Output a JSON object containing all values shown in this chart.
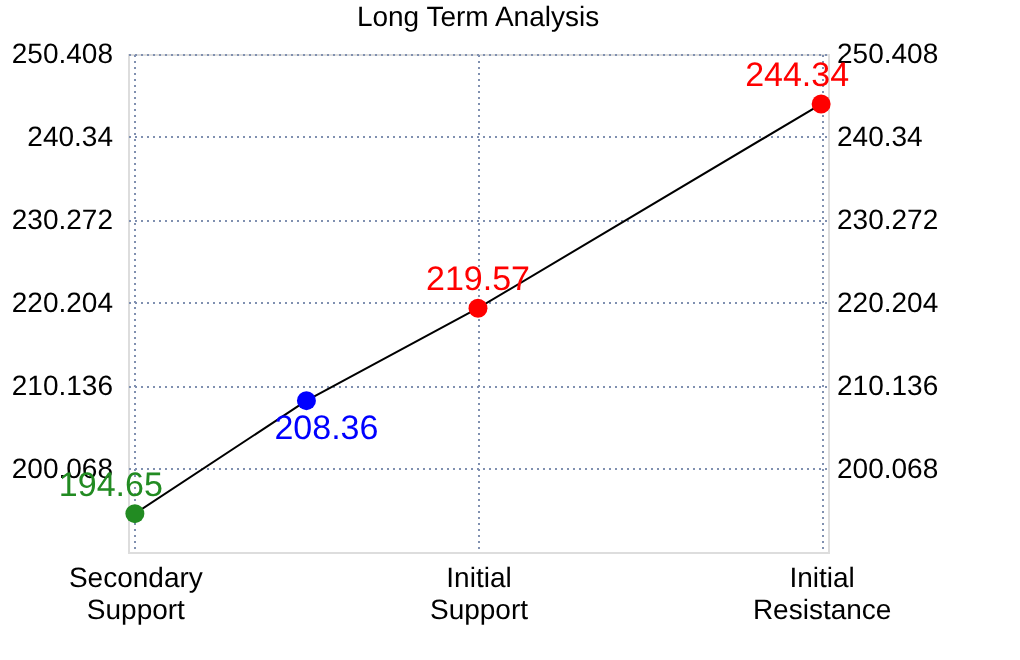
{
  "chart_data": {
    "type": "line",
    "title": "Long Term Analysis",
    "categories": [
      "Secondary Support",
      null,
      "Initial Support",
      null,
      "Initial Resistance"
    ],
    "ylim": [
      190,
      250.408
    ],
    "yticks": [
      200.068,
      210.136,
      220.204,
      230.272,
      240.34,
      250.408
    ],
    "y2lim": [
      190,
      250.408
    ],
    "y2ticks": [
      200.068,
      210.136,
      220.204,
      230.272,
      240.34,
      250.408
    ],
    "series": [
      {
        "color": "#000000",
        "colors": [
          "#228b22",
          "#0000ff",
          "#ff0000",
          null,
          "#ff0000"
        ],
        "values": [
          194.65,
          208.36,
          219.57,
          null,
          244.34
        ]
      }
    ],
    "marker": "circle",
    "line_style": "solid",
    "data_labels": true,
    "grid": true
  }
}
